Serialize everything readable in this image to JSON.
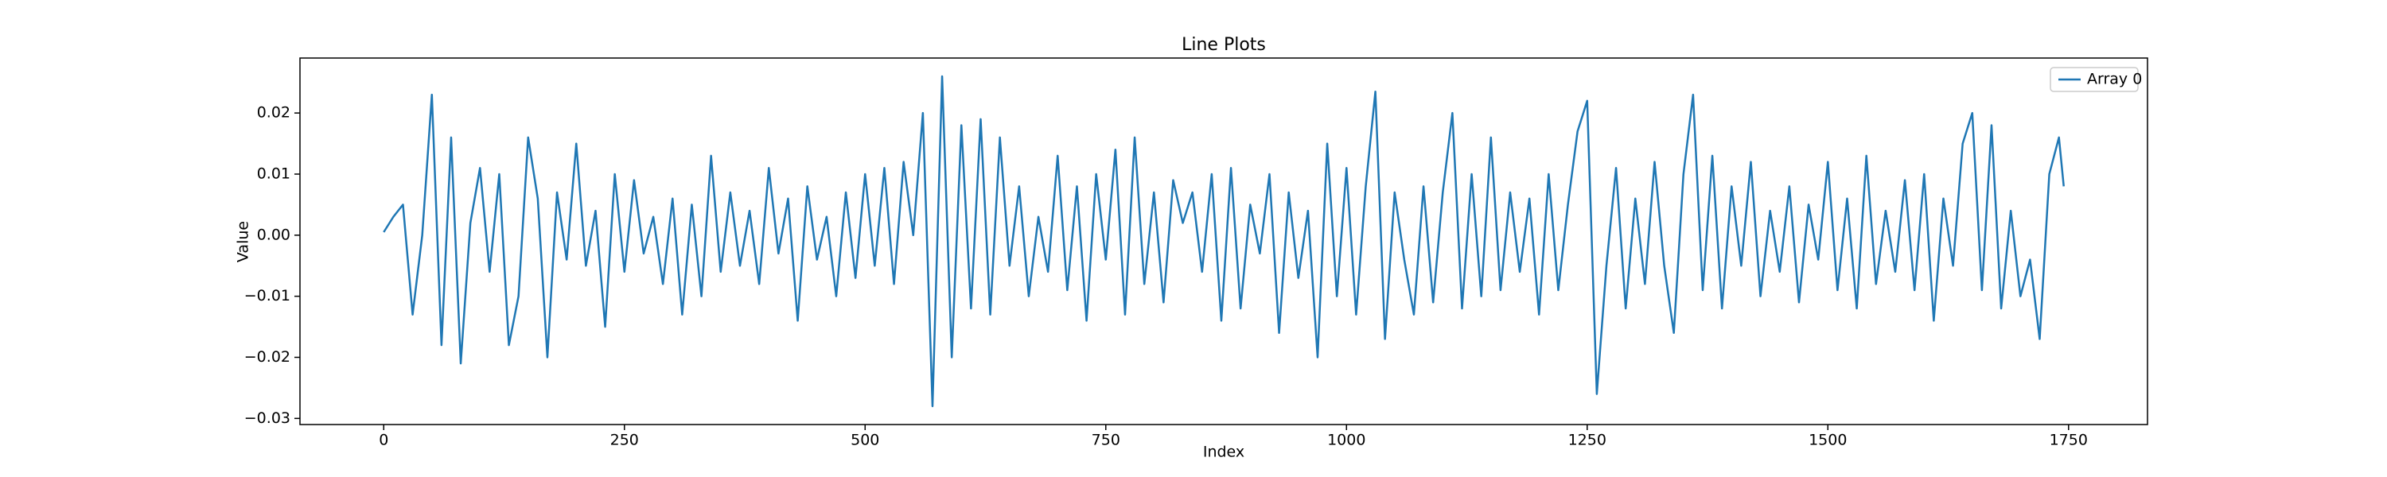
{
  "chart_data": {
    "type": "line",
    "title": "Line Plots",
    "xlabel": "Index",
    "ylabel": "Value",
    "x": [
      0,
      10,
      20,
      30,
      40,
      50,
      60,
      70,
      80,
      90,
      100,
      110,
      120,
      130,
      140,
      150,
      160,
      170,
      180,
      190,
      200,
      210,
      220,
      230,
      240,
      250,
      260,
      270,
      280,
      290,
      300,
      310,
      320,
      330,
      340,
      350,
      360,
      370,
      380,
      390,
      400,
      410,
      420,
      430,
      440,
      450,
      460,
      470,
      480,
      490,
      500,
      510,
      520,
      530,
      540,
      550,
      560,
      570,
      580,
      590,
      600,
      610,
      620,
      630,
      640,
      650,
      660,
      670,
      680,
      690,
      700,
      710,
      720,
      730,
      740,
      750,
      760,
      770,
      780,
      790,
      800,
      810,
      820,
      830,
      840,
      850,
      860,
      870,
      880,
      890,
      900,
      910,
      920,
      930,
      940,
      950,
      960,
      970,
      980,
      990,
      1000,
      1010,
      1020,
      1030,
      1040,
      1050,
      1060,
      1070,
      1080,
      1090,
      1100,
      1110,
      1120,
      1130,
      1140,
      1150,
      1160,
      1170,
      1180,
      1190,
      1200,
      1210,
      1220,
      1230,
      1240,
      1250,
      1260,
      1270,
      1280,
      1290,
      1300,
      1310,
      1320,
      1330,
      1340,
      1350,
      1360,
      1370,
      1380,
      1390,
      1400,
      1410,
      1420,
      1430,
      1440,
      1450,
      1460,
      1470,
      1480,
      1490,
      1500,
      1510,
      1520,
      1530,
      1540,
      1550,
      1560,
      1570,
      1580,
      1590,
      1600,
      1610,
      1620,
      1630,
      1640,
      1650,
      1660,
      1670,
      1680,
      1690,
      1700,
      1710,
      1720,
      1730,
      1740,
      1745
    ],
    "series": [
      {
        "name": "Array 0",
        "color": "#1f77b4",
        "values": [
          0.0005,
          0.003,
          0.005,
          -0.013,
          0.0,
          0.023,
          -0.018,
          0.016,
          -0.021,
          0.002,
          0.011,
          -0.006,
          0.01,
          -0.018,
          -0.01,
          0.016,
          0.006,
          -0.02,
          0.007,
          -0.004,
          0.015,
          -0.005,
          0.004,
          -0.015,
          0.01,
          -0.006,
          0.009,
          -0.003,
          0.003,
          -0.008,
          0.006,
          -0.013,
          0.005,
          -0.01,
          0.013,
          -0.006,
          0.007,
          -0.005,
          0.004,
          -0.008,
          0.011,
          -0.003,
          0.006,
          -0.014,
          0.008,
          -0.004,
          0.003,
          -0.01,
          0.007,
          -0.007,
          0.01,
          -0.005,
          0.011,
          -0.008,
          0.012,
          0.0,
          0.02,
          -0.028,
          0.026,
          -0.02,
          0.018,
          -0.012,
          0.019,
          -0.013,
          0.016,
          -0.005,
          0.008,
          -0.01,
          0.003,
          -0.006,
          0.013,
          -0.009,
          0.008,
          -0.014,
          0.01,
          -0.004,
          0.014,
          -0.013,
          0.016,
          -0.008,
          0.007,
          -0.011,
          0.009,
          0.002,
          0.007,
          -0.006,
          0.01,
          -0.014,
          0.011,
          -0.012,
          0.005,
          -0.003,
          0.01,
          -0.016,
          0.007,
          -0.007,
          0.004,
          -0.02,
          0.015,
          -0.01,
          0.011,
          -0.013,
          0.008,
          0.0235,
          -0.017,
          0.007,
          -0.004,
          -0.013,
          0.008,
          -0.011,
          0.007,
          0.02,
          -0.012,
          0.01,
          -0.01,
          0.016,
          -0.009,
          0.007,
          -0.006,
          0.006,
          -0.013,
          0.01,
          -0.009,
          0.005,
          0.017,
          0.022,
          -0.026,
          -0.005,
          0.011,
          -0.012,
          0.006,
          -0.008,
          0.012,
          -0.005,
          -0.016,
          0.01,
          0.023,
          -0.009,
          0.013,
          -0.012,
          0.008,
          -0.005,
          0.012,
          -0.01,
          0.004,
          -0.006,
          0.008,
          -0.011,
          0.005,
          -0.004,
          0.012,
          -0.009,
          0.006,
          -0.012,
          0.013,
          -0.008,
          0.004,
          -0.006,
          0.009,
          -0.009,
          0.01,
          -0.014,
          0.006,
          -0.005,
          0.015,
          0.02,
          -0.009,
          0.018,
          -0.012,
          0.004,
          -0.01,
          -0.004,
          -0.017,
          0.01,
          0.016,
          0.008
        ]
      }
    ],
    "xlim": [
      -87,
      1832
    ],
    "ylim": [
      -0.031,
      0.029
    ],
    "xticks": [
      0,
      250,
      500,
      750,
      1000,
      1250,
      1500,
      1750
    ],
    "yticks": [
      {
        "value": -0.03,
        "label": "−0.03"
      },
      {
        "value": -0.02,
        "label": "−0.02"
      },
      {
        "value": -0.01,
        "label": "−0.01"
      },
      {
        "value": 0.0,
        "label": "0.00"
      },
      {
        "value": 0.01,
        "label": "0.01"
      },
      {
        "value": 0.02,
        "label": "0.02"
      }
    ],
    "legend": "upper right",
    "grid": false
  }
}
